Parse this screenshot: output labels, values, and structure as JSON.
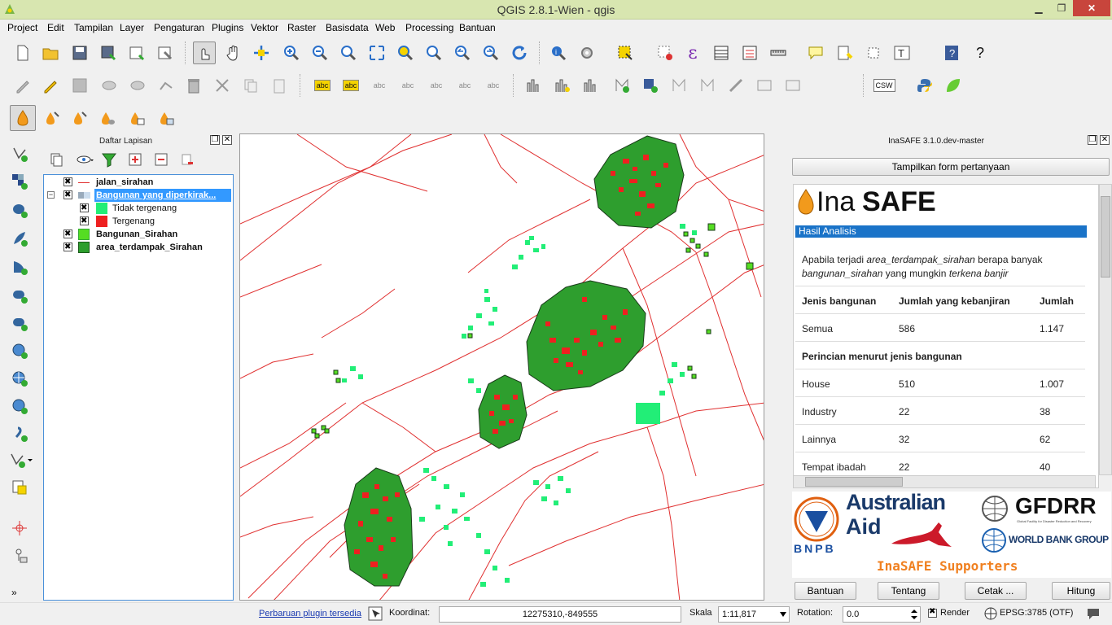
{
  "window": {
    "title": "QGIS 2.8.1-Wien - qgis",
    "minimize_glyph": "▁",
    "maximize_glyph": "❐",
    "close_glyph": "✕"
  },
  "menu": [
    "Project",
    "Edit",
    "Tampilan",
    "Layer",
    "Pengaturan",
    "Plugins",
    "Vektor",
    "Raster",
    "Basisdata",
    "Web",
    "Processing",
    "Bantuan"
  ],
  "toolbars": {
    "csw_label": "CSW",
    "abc_label": "abc",
    "epsilon_glyph": "ε",
    "help_glyph": "?"
  },
  "layers_panel": {
    "title": "Daftar Lapisan",
    "float_glyph": "❐",
    "close_glyph": "✕",
    "layers": [
      {
        "name": "jalan_sirahan",
        "bold": true,
        "swatch": "#e03030",
        "type": "line"
      },
      {
        "name": "Bangunan yang diperkirak...",
        "bold": true,
        "selected": true,
        "type": "group"
      },
      {
        "name": "Tidak tergenang",
        "bold": false,
        "swatch": "#22ee77",
        "type": "fill"
      },
      {
        "name": "Tergenang",
        "bold": false,
        "swatch": "#ee2020",
        "type": "fill"
      },
      {
        "name": "Bangunan_Sirahan",
        "bold": true,
        "swatch": "#55dd22",
        "type": "fill"
      },
      {
        "name": "area_terdampak_Sirahan",
        "bold": true,
        "swatch": "#2e9e2e",
        "type": "fill"
      }
    ],
    "collapse_glyph": "−"
  },
  "inasafe": {
    "title": "InaSAFE 3.1.0.dev-master",
    "float_glyph": "❐",
    "close_glyph": "✕",
    "show_form_button": "Tampilkan form pertanyaan",
    "logo_ina": "Ina",
    "logo_safe": "SAFE",
    "section_title": "Hasil Analisis",
    "question_parts": [
      "Apabila terjadi ",
      "area_terdampak_sirahan",
      " berapa banyak ",
      "bangunan_sirahan",
      " yang mungkin ",
      "terkena banjir"
    ],
    "table_headers": [
      "Jenis bangunan",
      "Jumlah yang kebanjiran",
      "Jumlah"
    ],
    "total_row": {
      "label": "Semua",
      "flooded": "586",
      "total": "1.147"
    },
    "breakdown_title": "Perincian menurut jenis bangunan",
    "breakdown": [
      {
        "label": "House",
        "flooded": "510",
        "total": "1.007"
      },
      {
        "label": "Industry",
        "flooded": "22",
        "total": "38"
      },
      {
        "label": "Lainnya",
        "flooded": "32",
        "total": "62"
      },
      {
        "label": "Tempat ibadah",
        "flooded": "22",
        "total": "40"
      }
    ],
    "supporters": {
      "australian": "Australian",
      "aid": "Aid",
      "bnpb": "BNPB",
      "gfdrr": "GFDRR",
      "gfdrr_sub": "Global Facility for Disaster Reduction and Recovery",
      "worldbank": "WORLD BANK GROUP",
      "caption": "InaSAFE Supporters"
    },
    "buttons": {
      "help": "Bantuan",
      "about": "Tentang",
      "print": "Cetak ...",
      "run": "Hitung"
    },
    "accent": "#1a73c8"
  },
  "statusbar": {
    "plugin_update": "Perbaruan plugin tersedia",
    "coord_label": "Koordinat:",
    "coord_value": "12275310,-849555",
    "scale_label": "Skala",
    "scale_value": "1:11,817",
    "rotation_label": "Rotation:",
    "rotation_value": "0.0",
    "render_label": "Render",
    "crs": "EPSG:3785 (OTF)"
  }
}
